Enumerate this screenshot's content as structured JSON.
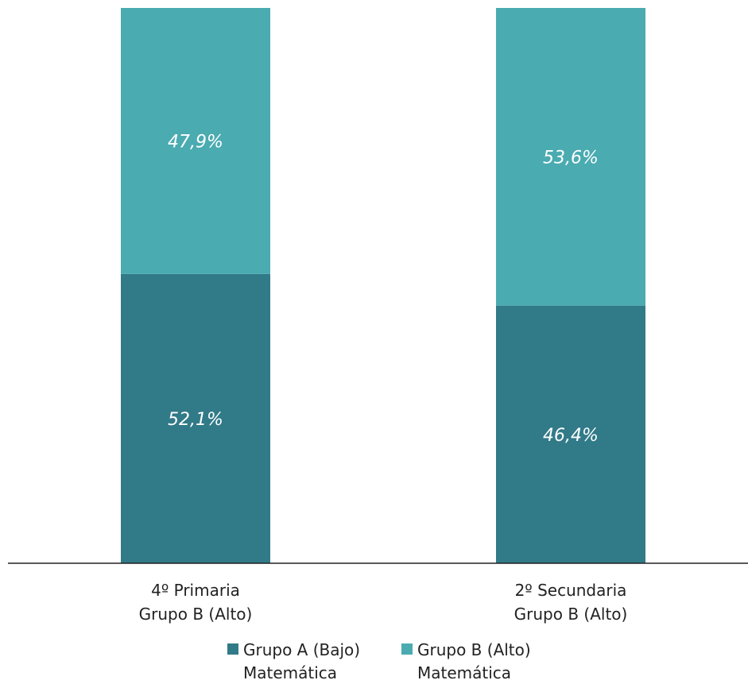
{
  "chart_data": {
    "type": "bar",
    "stacked": true,
    "categories": [
      [
        "4º Primaria",
        "Grupo B (Alto)"
      ],
      [
        "2º Secundaria",
        "Grupo B (Alto)"
      ]
    ],
    "series": [
      {
        "name": [
          "Grupo A (Bajo)",
          "Matemática"
        ],
        "values": [
          52.1,
          46.4
        ],
        "labels": [
          "52,1%",
          "46,4%"
        ],
        "color": "#317a88"
      },
      {
        "name": [
          "Grupo B (Alto)",
          "Matemática"
        ],
        "values": [
          47.9,
          53.6
        ],
        "labels": [
          "47,9%",
          "53,6%"
        ],
        "color": "#4aabb1"
      }
    ],
    "ylim": [
      0,
      100
    ],
    "legend": "bottom",
    "grid": false,
    "baseline_color": "#222222"
  }
}
